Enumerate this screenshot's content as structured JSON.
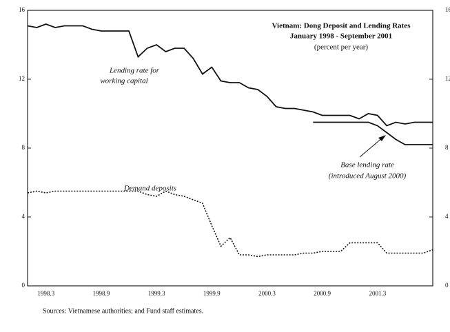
{
  "chart_data": {
    "type": "line",
    "title": [
      "Vietnam: Dong Deposit and Lending Rates",
      "January 1998 - September 2001",
      "(percent per year)"
    ],
    "categories": [
      null,
      null,
      "1998.3",
      null,
      null,
      null,
      null,
      null,
      "1998.9",
      null,
      null,
      null,
      null,
      null,
      "1999.3",
      null,
      null,
      null,
      null,
      null,
      "1999.9",
      null,
      null,
      null,
      null,
      null,
      "2000.3",
      null,
      null,
      null,
      null,
      null,
      "2000.9",
      null,
      null,
      null,
      null,
      null,
      "2001.3",
      null,
      null,
      null,
      null,
      null,
      null
    ],
    "series": [
      {
        "color": "#111",
        "dash": false,
        "values": [
          15.1,
          15.0,
          15.2,
          15.0,
          15.1,
          15.1,
          15.1,
          14.9,
          14.8,
          14.8,
          14.8,
          14.8,
          13.3,
          13.8,
          14.0,
          13.6,
          13.8,
          13.8,
          13.2,
          12.3,
          12.7,
          11.9,
          11.8,
          11.8,
          11.5,
          11.4,
          11.0,
          10.4,
          10.3,
          10.3,
          10.2,
          10.1,
          9.9,
          9.9,
          9.9,
          9.9,
          9.7,
          10.0,
          9.9,
          9.3,
          9.5,
          9.4,
          9.5,
          9.5,
          9.5
        ]
      },
      {
        "color": "#111",
        "dash": false,
        "values": [
          null,
          null,
          null,
          null,
          null,
          null,
          null,
          null,
          null,
          null,
          null,
          null,
          null,
          null,
          null,
          null,
          null,
          null,
          null,
          null,
          null,
          null,
          null,
          null,
          null,
          null,
          null,
          null,
          null,
          null,
          null,
          9.5,
          9.5,
          9.5,
          9.5,
          9.5,
          9.5,
          9.5,
          9.3,
          8.9,
          8.5,
          8.2,
          8.2,
          8.2,
          8.2
        ]
      },
      {
        "color": "#111",
        "dash": true,
        "values": [
          5.4,
          5.5,
          5.4,
          5.5,
          5.5,
          5.5,
          5.5,
          5.5,
          5.5,
          5.5,
          5.5,
          5.5,
          5.5,
          5.3,
          5.2,
          5.5,
          5.3,
          5.2,
          5.0,
          4.8,
          3.5,
          2.3,
          2.8,
          1.8,
          1.8,
          1.7,
          1.8,
          1.8,
          1.8,
          1.8,
          1.9,
          1.9,
          2.0,
          2.0,
          2.0,
          2.5,
          2.5,
          2.5,
          2.5,
          1.9,
          1.9,
          1.9,
          1.9,
          1.9,
          2.1
        ]
      }
    ],
    "annotations": [
      {
        "lines": [
          "Lending rate for",
          "working capital"
        ]
      },
      {
        "lines": [
          "Demand deposits"
        ]
      },
      {
        "lines": [
          "Base lending rate",
          "(introduced August 2000)"
        ]
      }
    ],
    "ylim": [
      0,
      16
    ],
    "yticks": [
      0,
      4,
      8,
      12,
      16
    ],
    "y2lim": [
      0,
      16
    ],
    "y2ticks": [
      0,
      4,
      8,
      12,
      16
    ],
    "source": "Sources: Vietnamese authorities; and Fund staff estimates."
  }
}
